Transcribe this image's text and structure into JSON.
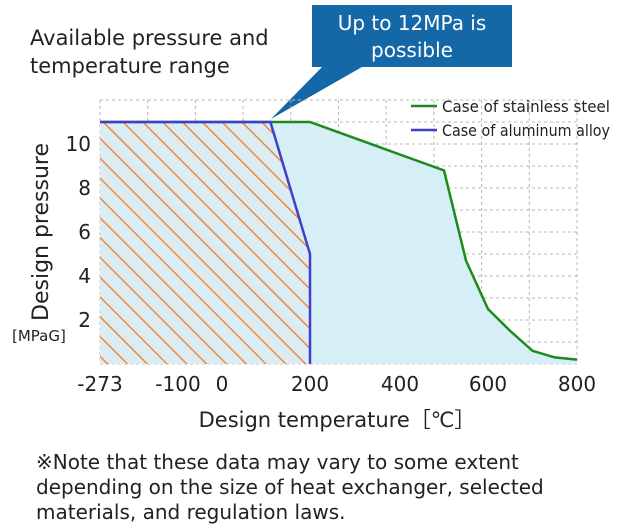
{
  "chart_data": {
    "type": "area",
    "title": "Available pressure and temperature range",
    "title_lines": [
      "Available pressure and",
      "temperature range"
    ],
    "xlabel": "Design temperature［℃］",
    "ylabel": "Design pressure",
    "yunit": "[MPaG]",
    "x_tick_labels": [
      "-273",
      "-100",
      "0",
      "200",
      "400",
      "600",
      "800"
    ],
    "x_tick_values": [
      -273,
      -100,
      0,
      200,
      400,
      600,
      800
    ],
    "y_ticks": [
      2,
      4,
      6,
      8,
      10
    ],
    "ylim": [
      0,
      12
    ],
    "grid": true,
    "legend_position": "top-right",
    "series": [
      {
        "name": "Case of stainless steel",
        "color": "#1e8a1e",
        "fill": "#d6eef5",
        "points": [
          [
            -273,
            11
          ],
          [
            200,
            11
          ],
          [
            500,
            8.8
          ],
          [
            550,
            4.7
          ],
          [
            600,
            2.5
          ],
          [
            650,
            1.5
          ],
          [
            700,
            0.6
          ],
          [
            750,
            0.3
          ],
          [
            800,
            0.2
          ]
        ]
      },
      {
        "name": "Case of aluminum alloy",
        "color": "#3f3fc8",
        "hatch": "#f08a3c",
        "points": [
          [
            -273,
            11
          ],
          [
            110,
            11
          ],
          [
            200,
            5
          ],
          [
            200,
            0
          ]
        ]
      }
    ],
    "callout": {
      "lines": [
        "Up to 12MPa is",
        "possible"
      ],
      "color": "#1468a8",
      "points_to": [
        110,
        11
      ]
    }
  },
  "note": "※Note that these data may vary to some extent depending on the size of heat exchanger, selected materials, and regulation laws."
}
